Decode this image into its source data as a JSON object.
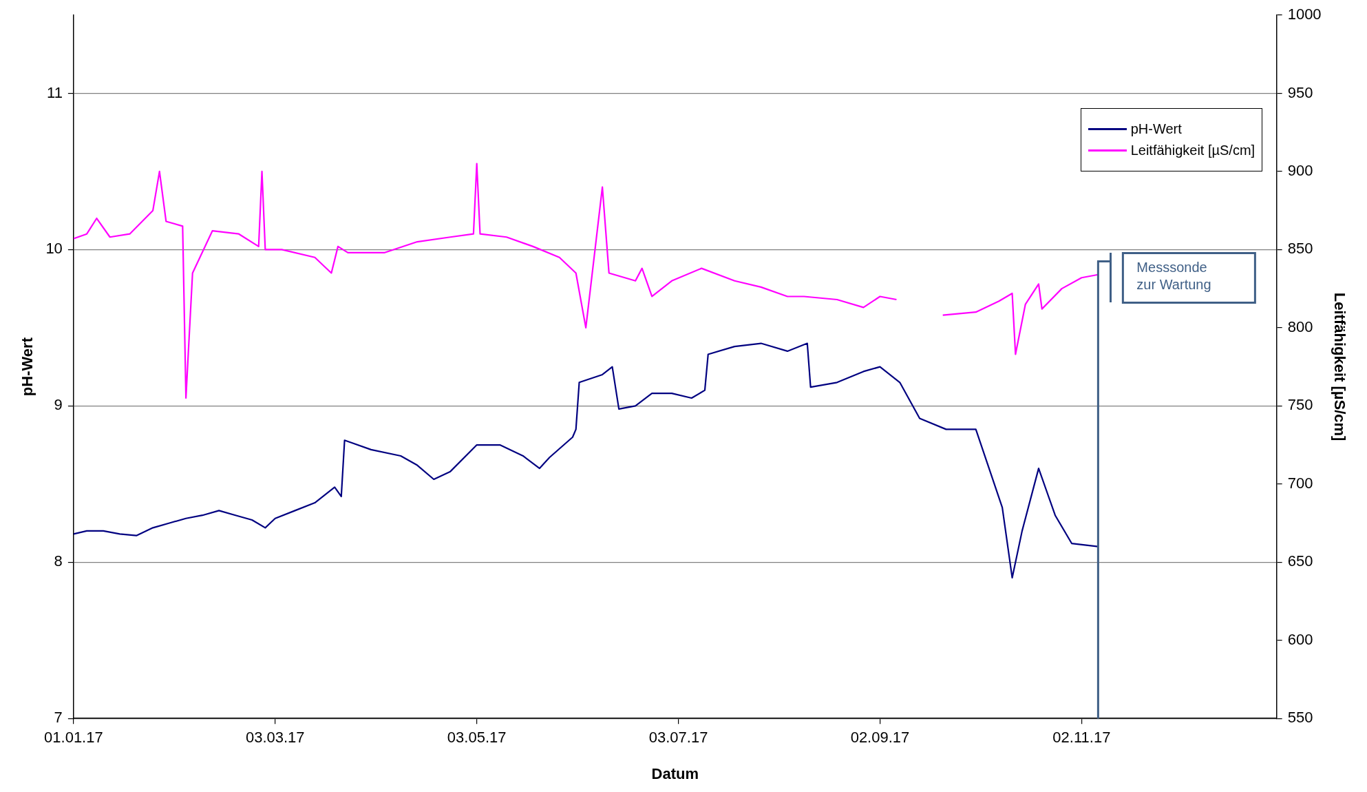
{
  "chart_data": {
    "type": "line",
    "xlabel": "Datum",
    "ylabel": "pH-Wert",
    "y2label": "Leitfähigkeit [µS/cm]",
    "xlim": [
      "2017-01-01",
      "2017-12-31"
    ],
    "xticks": [
      {
        "value": "2017-01-01",
        "label": "01.01.17"
      },
      {
        "value": "2017-03-03",
        "label": "03.03.17"
      },
      {
        "value": "2017-05-03",
        "label": "03.05.17"
      },
      {
        "value": "2017-07-03",
        "label": "03.07.17"
      },
      {
        "value": "2017-09-02",
        "label": "02.09.17"
      },
      {
        "value": "2017-11-02",
        "label": "02.11.17"
      }
    ],
    "ylim": [
      7,
      11.5
    ],
    "yticks": [
      7,
      8,
      9,
      10,
      11
    ],
    "y2lim": [
      550,
      1000
    ],
    "y2ticks": [
      550,
      600,
      650,
      700,
      750,
      800,
      850,
      900,
      950,
      1000
    ],
    "grid": "y",
    "legend": "top right",
    "ref_lines": [
      {
        "axis": "x",
        "value": "2017-11-07",
        "label": "Messsonde zur Wartung",
        "color": "#3f5f86"
      }
    ],
    "series": [
      {
        "name": "pH-Wert",
        "color": "#000080",
        "x": [
          "2017-01-01",
          "2017-01-05",
          "2017-01-10",
          "2017-01-15",
          "2017-01-20",
          "2017-01-25",
          "2017-01-30",
          "2017-02-04",
          "2017-02-09",
          "2017-02-14",
          "2017-02-19",
          "2017-02-24",
          "2017-02-28",
          "2017-03-03",
          "2017-03-09",
          "2017-03-15",
          "2017-03-21",
          "2017-03-23",
          "2017-03-24",
          "2017-04-01",
          "2017-04-10",
          "2017-04-15",
          "2017-04-20",
          "2017-04-25",
          "2017-05-03",
          "2017-05-10",
          "2017-05-17",
          "2017-05-22",
          "2017-05-25",
          "2017-06-01",
          "2017-06-02",
          "2017-06-03",
          "2017-06-10",
          "2017-06-13",
          "2017-06-15",
          "2017-06-20",
          "2017-06-25",
          "2017-07-01",
          "2017-07-07",
          "2017-07-11",
          "2017-07-12",
          "2017-07-20",
          "2017-07-28",
          "2017-08-05",
          "2017-08-11",
          "2017-08-12",
          "2017-08-20",
          "2017-08-28",
          "2017-09-02",
          "2017-09-08",
          "2017-09-14",
          "2017-09-22",
          "2017-10-01",
          "2017-10-05",
          "2017-10-09",
          "2017-10-12",
          "2017-10-15",
          "2017-10-20",
          "2017-10-25",
          "2017-10-30",
          "2017-11-07"
        ],
        "values": [
          8.18,
          8.2,
          8.2,
          8.18,
          8.17,
          8.22,
          8.25,
          8.28,
          8.3,
          8.33,
          8.3,
          8.27,
          8.22,
          8.28,
          8.33,
          8.38,
          8.48,
          8.42,
          8.78,
          8.72,
          8.68,
          8.62,
          8.53,
          8.58,
          8.75,
          8.75,
          8.68,
          8.6,
          8.67,
          8.8,
          8.85,
          9.15,
          9.2,
          9.25,
          8.98,
          9.0,
          9.08,
          9.08,
          9.05,
          9.1,
          9.33,
          9.38,
          9.4,
          9.35,
          9.4,
          9.12,
          9.15,
          9.22,
          9.25,
          9.15,
          8.92,
          8.85,
          8.85,
          8.6,
          8.35,
          7.9,
          8.2,
          8.6,
          8.3,
          8.12,
          8.1
        ]
      },
      {
        "name": "Leitfähigkeit [µS/cm]",
        "color": "#ff00ff",
        "axis": "y2",
        "x": [
          "2017-01-01",
          "2017-01-05",
          "2017-01-08",
          "2017-01-12",
          "2017-01-18",
          "2017-01-25",
          "2017-01-27",
          "2017-01-29",
          "2017-02-03",
          "2017-02-04",
          "2017-02-06",
          "2017-02-12",
          "2017-02-20",
          "2017-02-26",
          "2017-02-27",
          "2017-02-28",
          "2017-03-05",
          "2017-03-15",
          "2017-03-20",
          "2017-03-22",
          "2017-03-25",
          "2017-04-05",
          "2017-04-15",
          "2017-04-25",
          "2017-05-02",
          "2017-05-03",
          "2017-05-04",
          "2017-05-12",
          "2017-05-20",
          "2017-05-28",
          "2017-06-02",
          "2017-06-05",
          "2017-06-10",
          "2017-06-12",
          "2017-06-20",
          "2017-06-22",
          "2017-06-25",
          "2017-07-01",
          "2017-07-10",
          "2017-07-20",
          "2017-07-28",
          "2017-08-05",
          "2017-08-10",
          "2017-08-20",
          "2017-08-28",
          "2017-09-02",
          "2017-09-07",
          "2017-09-08",
          "2017-09-21",
          "2017-10-01",
          "2017-10-08",
          "2017-10-12",
          "2017-10-13",
          "2017-10-16",
          "2017-10-20",
          "2017-10-21",
          "2017-10-27",
          "2017-11-02",
          "2017-11-07"
        ],
        "values": [
          857,
          860,
          870,
          858,
          860,
          875,
          900,
          868,
          865,
          755,
          835,
          862,
          860,
          852,
          900,
          850,
          850,
          845,
          835,
          852,
          848,
          848,
          855,
          858,
          860,
          905,
          860,
          858,
          852,
          845,
          835,
          800,
          890,
          835,
          830,
          838,
          820,
          830,
          838,
          830,
          826,
          820,
          820,
          818,
          813,
          820,
          818,
          null,
          808,
          810,
          817,
          822,
          783,
          815,
          828,
          812,
          825,
          832,
          834
        ]
      }
    ]
  }
}
